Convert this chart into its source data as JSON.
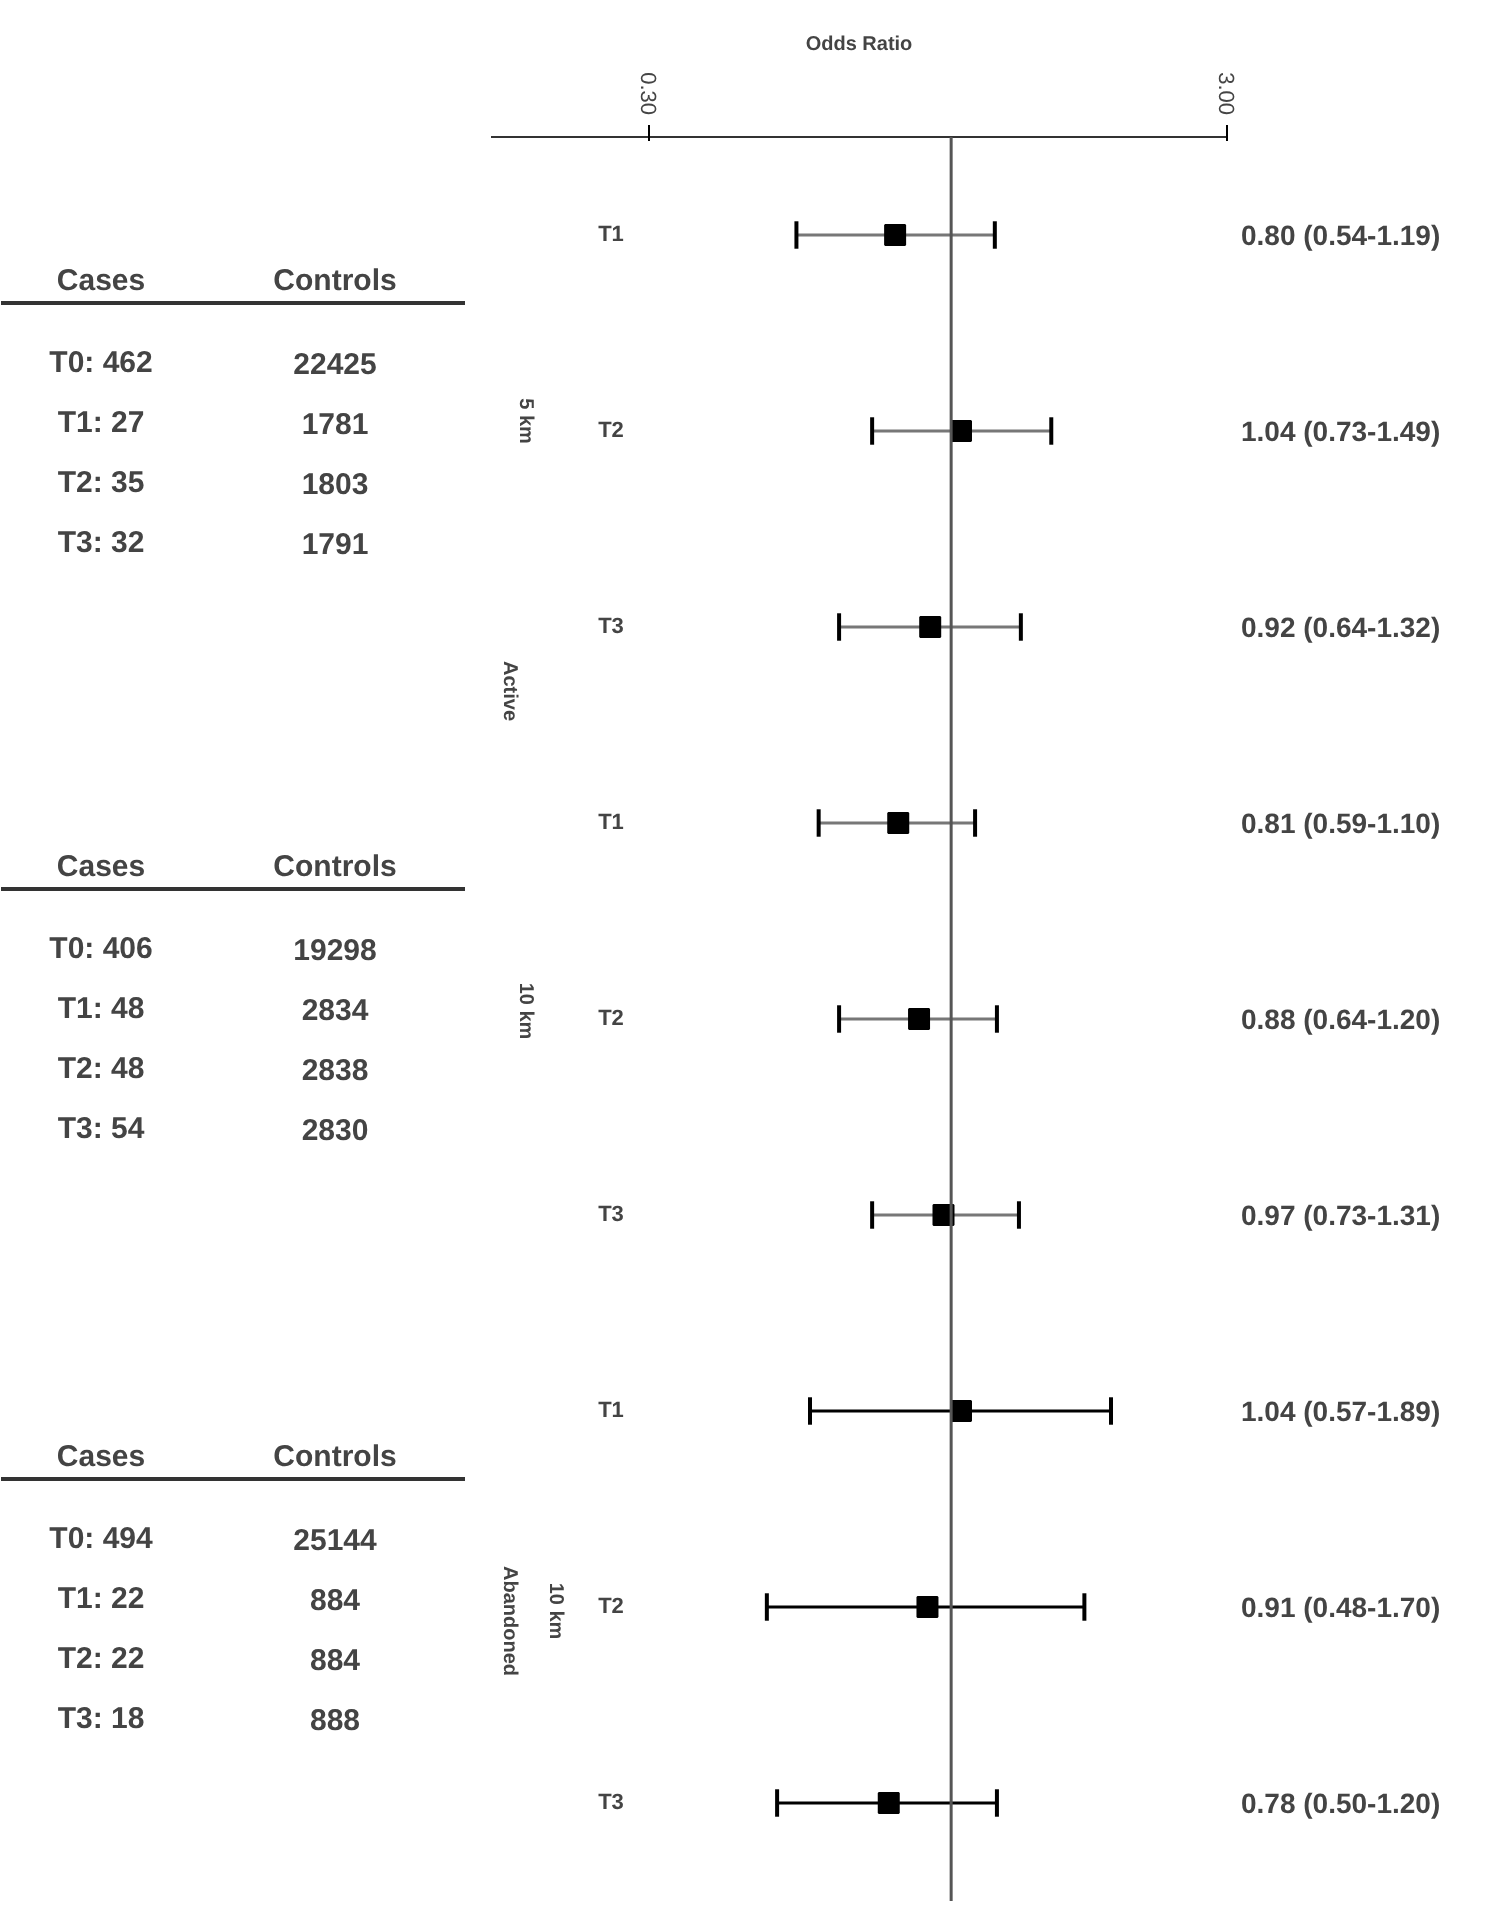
{
  "chart_data": {
    "type": "scatter",
    "orientation": "horizontal",
    "xlabel": "Odds Ratio",
    "categories": [
      "T1",
      "T2",
      "T3",
      "T1",
      "T2",
      "T3",
      "T1",
      "T2",
      "T3"
    ],
    "values": [
      0.8,
      1.04,
      0.92,
      0.81,
      0.88,
      0.97,
      1.04,
      0.91,
      0.78
    ],
    "errors": [
      [
        0.54,
        1.19
      ],
      [
        0.73,
        1.49
      ],
      [
        0.64,
        1.32
      ],
      [
        0.59,
        1.1
      ],
      [
        0.64,
        1.2
      ],
      [
        0.73,
        1.31
      ],
      [
        0.57,
        1.89
      ],
      [
        0.48,
        1.7
      ],
      [
        0.5,
        1.2
      ]
    ],
    "value_labels": [
      "0.80 (0.54-1.19)",
      "1.04 (0.73-1.49)",
      "0.92 (0.64-1.32)",
      "0.81 (0.59-1.10)",
      "0.88 (0.64-1.20)",
      "0.97 (0.73-1.31)",
      "1.04 (0.57-1.89)",
      "0.91 (0.48-1.70)",
      "0.78 (0.50-1.20)"
    ],
    "color": "#000000",
    "marker": "square",
    "log": "x",
    "xlim": [
      0.16,
      3.0
    ],
    "xticks": [
      {
        "value": 0.3,
        "label": "0.30"
      },
      {
        "value": 3.0,
        "label": "3.00"
      }
    ],
    "ref_lines": [
      {
        "axis": "x",
        "value": 1,
        "label": null
      }
    ],
    "grid": false,
    "legend": false,
    "annotations": [
      "Cases",
      "Controls",
      "T0: 462",
      "22425",
      "T1: 27",
      "1781",
      "T2: 35",
      "1803",
      "T3: 32",
      "1791",
      "Cases",
      "Controls",
      "T0: 406",
      "19298",
      "T1: 48",
      "2834",
      "T2: 48",
      "2838",
      "T3: 54",
      "2830",
      "Cases",
      "Controls",
      "T0: 494",
      "25144",
      "T1: 22",
      "884",
      "T2: 22",
      "884",
      "T3: 18",
      "888",
      "5 km",
      "Active",
      "10 km",
      "10 km",
      "Abandoned"
    ]
  }
}
